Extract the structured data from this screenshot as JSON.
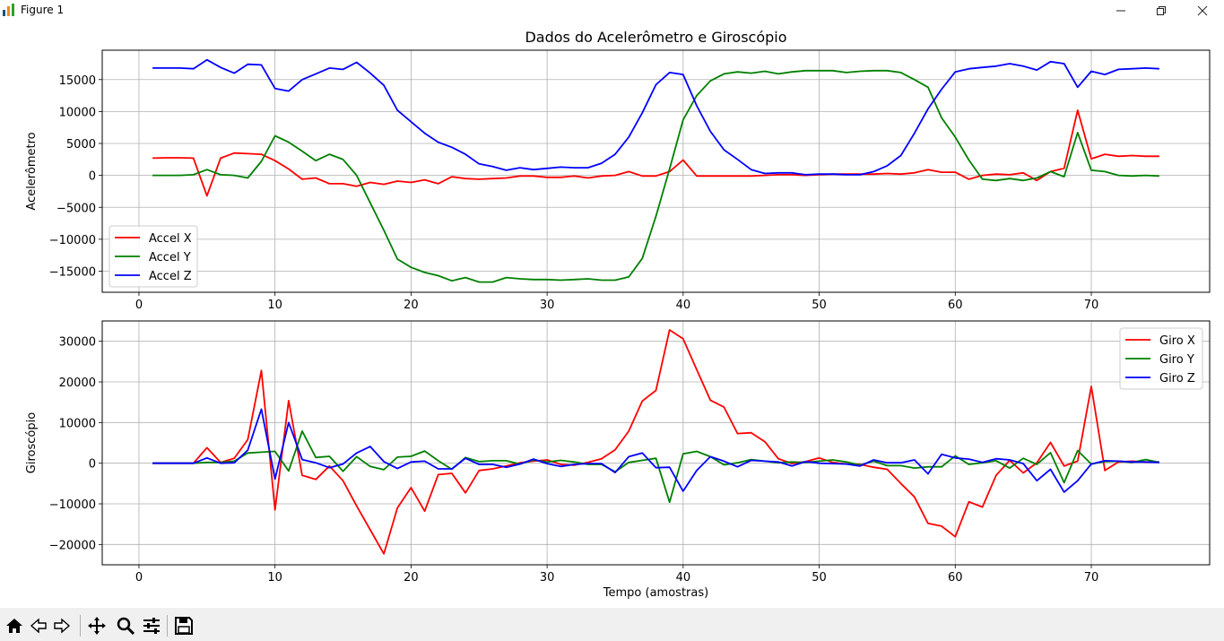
{
  "window": {
    "title": "Figure 1",
    "controls": [
      "minimize",
      "restore",
      "close"
    ]
  },
  "toolbar": {
    "icons": [
      "home-icon",
      "back-icon",
      "forward-icon",
      "pan-icon",
      "zoom-icon",
      "configure-subplots-icon",
      "save-icon"
    ]
  },
  "chart_data": [
    {
      "type": "line",
      "title": "Dados do Acelerômetro e Giroscópio",
      "xlabel": "",
      "ylabel": "Acelerômetro",
      "xlim": [
        -2.7,
        78.7
      ],
      "ylim": [
        -18300,
        19600
      ],
      "xticks": [
        0,
        10,
        20,
        30,
        40,
        50,
        60,
        70
      ],
      "yticks": [
        -15000,
        -10000,
        -5000,
        0,
        5000,
        10000,
        15000
      ],
      "grid": true,
      "legend": "lower-left",
      "x": [
        1,
        2,
        3,
        4,
        5,
        6,
        7,
        8,
        9,
        10,
        11,
        12,
        13,
        14,
        15,
        16,
        17,
        18,
        19,
        20,
        21,
        22,
        23,
        24,
        25,
        26,
        27,
        28,
        29,
        30,
        31,
        32,
        33,
        34,
        35,
        36,
        37,
        38,
        39,
        40,
        41,
        42,
        43,
        44,
        45,
        46,
        47,
        48,
        49,
        50,
        51,
        52,
        53,
        54,
        55,
        56,
        57,
        58,
        59,
        60,
        61,
        62,
        63,
        64,
        65,
        66,
        67,
        68,
        69,
        70,
        71,
        72,
        73,
        74,
        75
      ],
      "series": [
        {
          "name": "Accel X",
          "color": "#ff0000",
          "values": [
            2700,
            2750,
            2750,
            2700,
            -3200,
            2700,
            3500,
            3400,
            3300,
            2300,
            1000,
            -600,
            -400,
            -1300,
            -1300,
            -1700,
            -1100,
            -1400,
            -900,
            -1100,
            -700,
            -1300,
            -200,
            -500,
            -600,
            -500,
            -400,
            -100,
            -100,
            -300,
            -300,
            -100,
            -400,
            -100,
            0,
            600,
            -100,
            -100,
            600,
            2400,
            -100,
            -100,
            -100,
            -100,
            -100,
            0,
            100,
            100,
            0,
            100,
            200,
            200,
            200,
            200,
            300,
            200,
            400,
            900,
            500,
            500,
            -600,
            0,
            200,
            100,
            400,
            -800,
            600,
            1100,
            10200,
            2600,
            3300,
            3000,
            3100,
            3000,
            3000
          ]
        },
        {
          "name": "Accel Y",
          "color": "#008000",
          "values": [
            0,
            0,
            0,
            100,
            900,
            100,
            0,
            -400,
            2200,
            6200,
            5200,
            3800,
            2300,
            3300,
            2500,
            0,
            -4300,
            -8600,
            -13100,
            -14400,
            -15200,
            -15700,
            -16500,
            -16000,
            -16700,
            -16700,
            -16000,
            -16200,
            -16300,
            -16300,
            -16400,
            -16300,
            -16200,
            -16400,
            -16400,
            -15900,
            -13000,
            -6400,
            1000,
            8700,
            12500,
            14800,
            15900,
            16200,
            16000,
            16300,
            15900,
            16200,
            16400,
            16400,
            16400,
            16100,
            16300,
            16400,
            16400,
            16100,
            15000,
            13800,
            9000,
            6000,
            2400,
            -600,
            -800,
            -500,
            -800,
            -400,
            600,
            -200,
            6700,
            800,
            600,
            0,
            -100,
            0,
            -100
          ]
        },
        {
          "name": "Accel Z",
          "color": "#0000ff",
          "values": [
            16800,
            16800,
            16800,
            16700,
            18100,
            16900,
            16000,
            17400,
            17300,
            13600,
            13200,
            15000,
            15900,
            16800,
            16600,
            17700,
            16000,
            14100,
            10200,
            8400,
            6600,
            5200,
            4400,
            3300,
            1800,
            1400,
            800,
            1200,
            900,
            1100,
            1300,
            1200,
            1200,
            1900,
            3300,
            6000,
            9800,
            14200,
            16100,
            15800,
            10900,
            6900,
            4000,
            2500,
            900,
            300,
            400,
            400,
            100,
            200,
            200,
            100,
            100,
            600,
            1500,
            3100,
            6600,
            10400,
            13500,
            16200,
            16700,
            16900,
            17100,
            17500,
            17100,
            16500,
            17800,
            17500,
            13800,
            16300,
            15800,
            16600,
            16700,
            16800,
            16700
          ]
        }
      ]
    },
    {
      "type": "line",
      "title": "",
      "xlabel": "Tempo (amostras)",
      "ylabel": "Giroscópio",
      "xlim": [
        -2.7,
        78.7
      ],
      "ylim": [
        -25000,
        35000
      ],
      "xticks": [
        0,
        10,
        20,
        30,
        40,
        50,
        60,
        70
      ],
      "yticks": [
        -20000,
        -10000,
        0,
        10000,
        20000,
        30000
      ],
      "grid": true,
      "legend": "upper-right",
      "x": [
        1,
        2,
        3,
        4,
        5,
        6,
        7,
        8,
        9,
        10,
        11,
        12,
        13,
        14,
        15,
        16,
        17,
        18,
        19,
        20,
        21,
        22,
        23,
        24,
        25,
        26,
        27,
        28,
        29,
        30,
        31,
        32,
        33,
        34,
        35,
        36,
        37,
        38,
        39,
        40,
        41,
        42,
        43,
        44,
        45,
        46,
        47,
        48,
        49,
        50,
        51,
        52,
        53,
        54,
        55,
        56,
        57,
        58,
        59,
        60,
        61,
        62,
        63,
        64,
        65,
        66,
        67,
        68,
        69,
        70,
        71,
        72,
        73,
        74,
        75
      ],
      "series": [
        {
          "name": "Giro X",
          "color": "#ff0000",
          "values": [
            0,
            0,
            0,
            0,
            3800,
            200,
            1200,
            5800,
            22800,
            -11500,
            15400,
            -3000,
            -4000,
            -700,
            -4300,
            -10500,
            -16400,
            -22300,
            -11000,
            -6000,
            -11800,
            -2800,
            -2500,
            -7300,
            -1800,
            -1400,
            -700,
            100,
            500,
            800,
            -300,
            -500,
            200,
            1100,
            3300,
            7900,
            15300,
            17900,
            32800,
            30600,
            23000,
            15500,
            13800,
            7300,
            7500,
            5300,
            1100,
            -100,
            400,
            1300,
            200,
            -200,
            -300,
            -1000,
            -1500,
            -5000,
            -8300,
            -14800,
            -15500,
            -18100,
            -9500,
            -10800,
            -3000,
            700,
            -2400,
            100,
            5100,
            -700,
            500,
            18900,
            -1800,
            300,
            500,
            300,
            300
          ]
        },
        {
          "name": "Giro Y",
          "color": "#008000",
          "values": [
            0,
            0,
            0,
            0,
            200,
            200,
            500,
            2500,
            2700,
            2900,
            -1900,
            7900,
            1400,
            1700,
            -2000,
            1600,
            -800,
            -1600,
            1500,
            1700,
            3000,
            600,
            -1500,
            1400,
            400,
            600,
            600,
            -200,
            800,
            300,
            700,
            300,
            -300,
            -300,
            -2100,
            200,
            700,
            1200,
            -9600,
            2300,
            2900,
            1600,
            -400,
            100,
            900,
            500,
            100,
            300,
            200,
            500,
            800,
            300,
            -500,
            500,
            -600,
            -600,
            -1200,
            -900,
            -900,
            1800,
            -300,
            100,
            600,
            -1200,
            1200,
            -300,
            2600,
            -4800,
            3100,
            -200,
            400,
            500,
            200,
            900,
            200
          ]
        },
        {
          "name": "Giro Z",
          "color": "#0000ff",
          "values": [
            0,
            0,
            0,
            0,
            1300,
            0,
            100,
            3200,
            13300,
            -3900,
            10000,
            900,
            100,
            -1100,
            -200,
            2500,
            4100,
            400,
            -1300,
            300,
            500,
            -1400,
            -1400,
            1200,
            -300,
            -300,
            -1000,
            -200,
            1000,
            -100,
            -800,
            -300,
            -100,
            -100,
            -2300,
            1600,
            2500,
            -1100,
            -1000,
            -6900,
            -1800,
            1600,
            500,
            -900,
            700,
            500,
            300,
            -700,
            400,
            0,
            -100,
            -200,
            -700,
            800,
            100,
            100,
            800,
            -2600,
            2200,
            1300,
            1000,
            200,
            1100,
            800,
            -100,
            -4300,
            -1500,
            -7100,
            -4300,
            -200,
            600,
            500,
            300,
            300,
            200
          ]
        }
      ]
    }
  ]
}
